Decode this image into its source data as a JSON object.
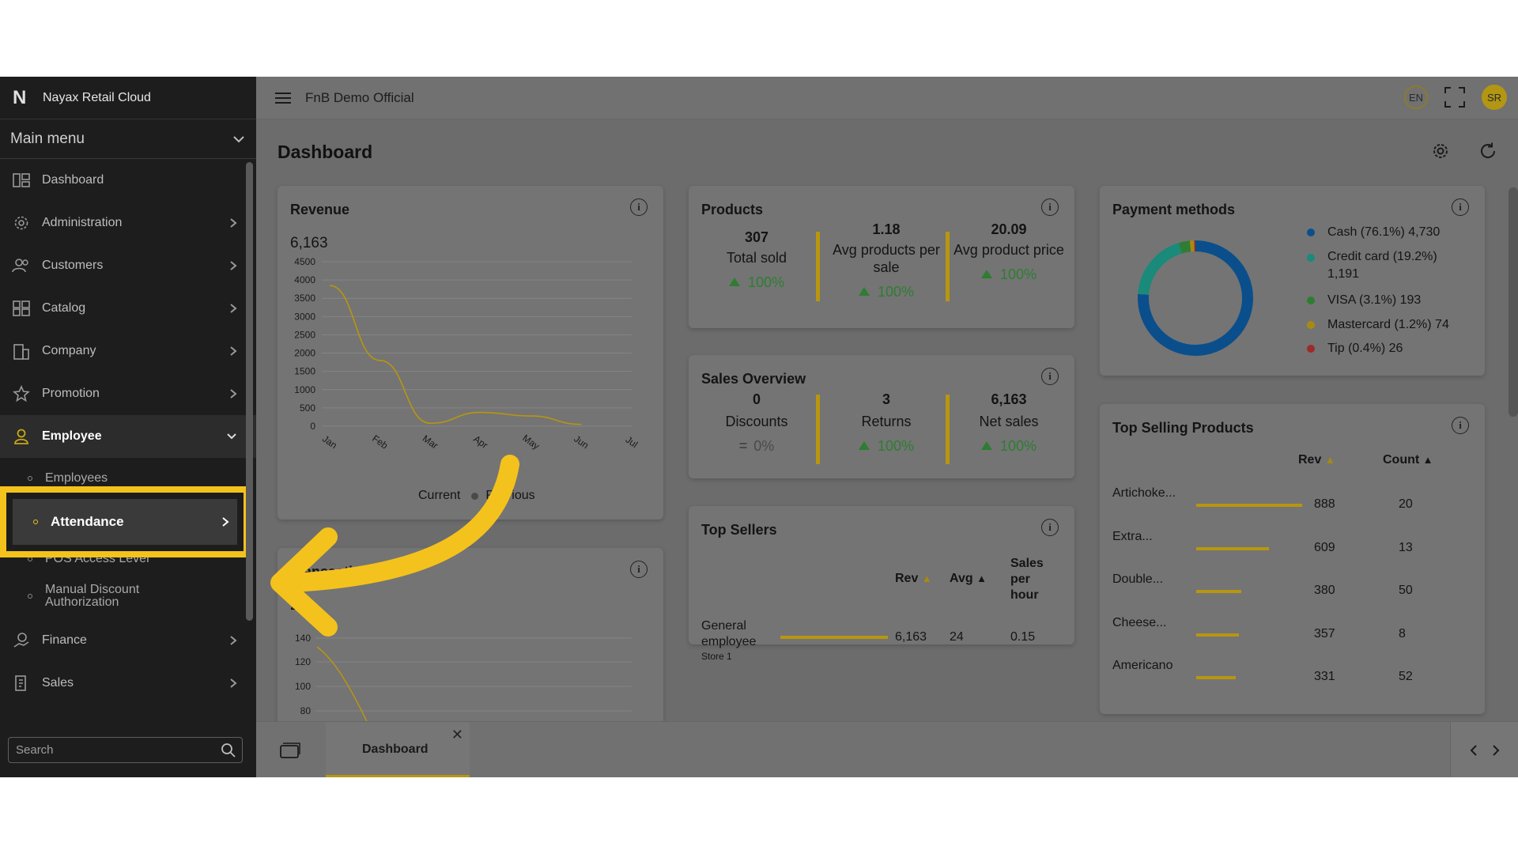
{
  "brand": {
    "name": "Nayax Retail Cloud",
    "logo_letter": "N"
  },
  "sidebar": {
    "main_menu_label": "Main menu",
    "items": [
      {
        "label": "Dashboard",
        "icon": "dashboard-icon"
      },
      {
        "label": "Administration",
        "icon": "gear-icon"
      },
      {
        "label": "Customers",
        "icon": "users-icon"
      },
      {
        "label": "Catalog",
        "icon": "grid-icon"
      },
      {
        "label": "Company",
        "icon": "building-icon"
      },
      {
        "label": "Promotion",
        "icon": "star-icon"
      },
      {
        "label": "Employee",
        "icon": "employee-icon"
      }
    ],
    "employee_subitems": [
      "Employees",
      "Attendance",
      "POS Access Level",
      "Manual Discount Authorization"
    ],
    "after_items": [
      {
        "label": "Finance",
        "icon": "finance-icon"
      },
      {
        "label": "Sales",
        "icon": "sales-icon"
      }
    ],
    "search_placeholder": "Search"
  },
  "topbar": {
    "org_name": "FnB Demo Official",
    "lang": "EN",
    "user_initials": "SR"
  },
  "page": {
    "title": "Dashboard"
  },
  "revenue": {
    "title": "Revenue",
    "total": "6,163",
    "legend_current": "Current",
    "legend_previous": "Previous",
    "chart_data": {
      "type": "line",
      "x": [
        "Jan",
        "Feb",
        "Mar",
        "Apr",
        "May",
        "Jun",
        "Jul"
      ],
      "ylim": [
        0,
        4500
      ],
      "yticks": [
        0,
        500,
        1000,
        1500,
        2000,
        2500,
        3000,
        3500,
        4000,
        4500
      ],
      "series": [
        {
          "name": "Current",
          "values": [
            3850,
            1800,
            80,
            380,
            280,
            50,
            null
          ]
        }
      ]
    }
  },
  "transactions": {
    "title": "Transactions",
    "total": "261",
    "yticks": [
      "140",
      "120",
      "100",
      "80"
    ]
  },
  "products": {
    "title": "Products",
    "stats": [
      {
        "value": "307",
        "label": "Total sold",
        "delta": "100%"
      },
      {
        "value": "1.18",
        "label": "Avg products per sale",
        "delta": "100%"
      },
      {
        "value": "20.09",
        "label": "Avg product price",
        "delta": "100%"
      }
    ]
  },
  "sales_overview": {
    "title": "Sales Overview",
    "stats": [
      {
        "value": "0",
        "label": "Discounts",
        "delta": "0%"
      },
      {
        "value": "3",
        "label": "Returns",
        "delta": "100%"
      },
      {
        "value": "6,163",
        "label": "Net sales",
        "delta": "100%"
      }
    ]
  },
  "top_sellers": {
    "title": "Top Sellers",
    "headers": {
      "rev": "Rev",
      "avg": "Avg",
      "sales_per_hour": "Sales per hour"
    },
    "rows": [
      {
        "name": "General employee",
        "store": "Store 1",
        "rev": "6,163",
        "avg": "24",
        "sph": "0.15",
        "bar": 1.0
      }
    ]
  },
  "payment_methods": {
    "title": "Payment methods",
    "chart_data": {
      "type": "pie",
      "categories": [
        "Cash",
        "Credit card",
        "VISA",
        "Mastercard",
        "Tip"
      ],
      "values": [
        76.1,
        19.2,
        3.1,
        1.2,
        0.4
      ],
      "colors": [
        "#0a4f8c",
        "#1a8a7a",
        "#2f7d32",
        "#a98a10",
        "#9e2a2a"
      ]
    },
    "legend": [
      {
        "text": "Cash (76.1%) 4,730",
        "color": "#0a4f8c"
      },
      {
        "text": "Credit card (19.2%) 1,191",
        "color": "#1a8a7a"
      },
      {
        "text": "VISA (3.1%) 193",
        "color": "#2f7d32"
      },
      {
        "text": "Mastercard (1.2%) 74",
        "color": "#a98a10"
      },
      {
        "text": "Tip (0.4%) 26",
        "color": "#9e2a2a"
      }
    ]
  },
  "top_selling_products": {
    "title": "Top Selling Products",
    "headers": {
      "rev": "Rev",
      "count": "Count"
    },
    "rows": [
      {
        "name": "Artichoke...",
        "rev": "888",
        "count": "20",
        "bar": 1.0
      },
      {
        "name": "Extra...",
        "rev": "609",
        "count": "13",
        "bar": 0.686
      },
      {
        "name": "Double...",
        "rev": "380",
        "count": "50",
        "bar": 0.428
      },
      {
        "name": "Cheese...",
        "rev": "357",
        "count": "8",
        "bar": 0.402
      },
      {
        "name": "Americano",
        "rev": "331",
        "count": "52",
        "bar": 0.373
      }
    ]
  },
  "bottom_tabs": [
    {
      "label": "Dashboard"
    }
  ],
  "colors": {
    "accent": "#f4c21c",
    "sidebar_bg": "#1d1d1d",
    "overlay_main": "#6c6c6c"
  }
}
